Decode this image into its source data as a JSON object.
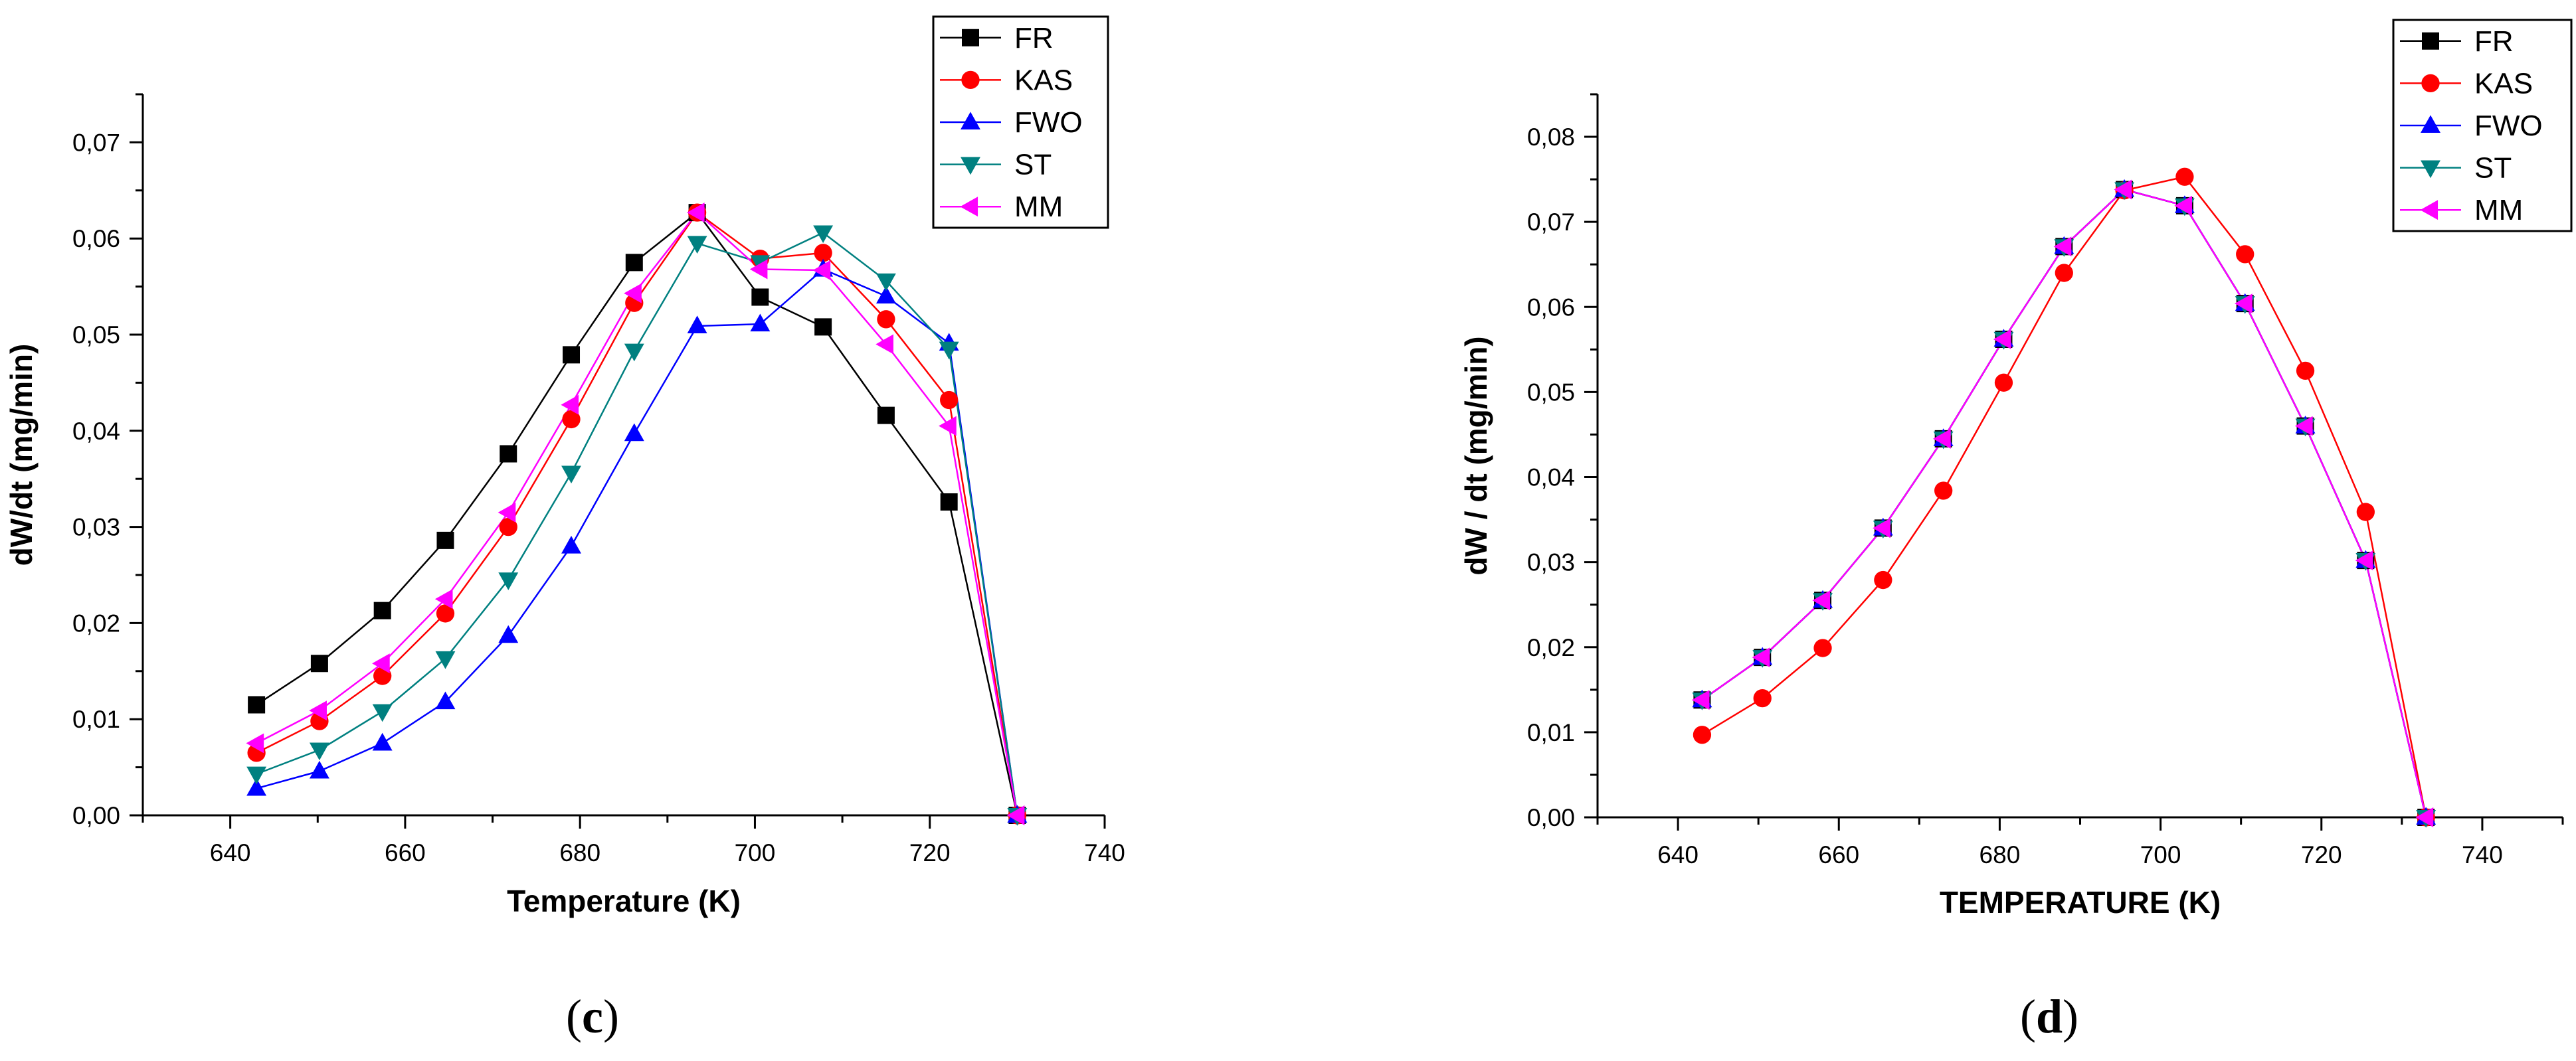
{
  "colors": {
    "FR": "#000000",
    "KAS": "#ff0000",
    "FWO": "#0000ff",
    "ST": "#008080",
    "MM": "#ff00ff"
  },
  "chart_data": [
    {
      "type": "line",
      "panel_label": "c",
      "xlabel": "Temperature (K)",
      "ylabel": "dW/dt (mg/min)",
      "xlim": [
        630,
        740
      ],
      "ylim": [
        0,
        0.075
      ],
      "xticks": [
        640,
        660,
        680,
        700,
        720,
        740
      ],
      "xtick_labels": [
        "640",
        "660",
        "680",
        "700",
        "720",
        "740"
      ],
      "yticks": [
        0,
        0.01,
        0.02,
        0.03,
        0.04,
        0.05,
        0.06,
        0.07
      ],
      "ytick_labels": [
        "0,00",
        "0,01",
        "0,02",
        "0,03",
        "0,04",
        "0,05",
        "0,06",
        "0,07"
      ],
      "legend_position": "top-right",
      "series": [
        {
          "name": "FR",
          "marker": "square",
          "x": [
            643,
            650.2,
            657.4,
            664.6,
            671.8,
            679,
            686.2,
            693.4,
            700.6,
            707.8,
            715,
            722.2,
            730
          ],
          "y": [
            0.0115,
            0.0158,
            0.0213,
            0.0286,
            0.0376,
            0.0479,
            0.0575,
            0.0627,
            0.0539,
            0.0508,
            0.0416,
            0.0326,
            0
          ]
        },
        {
          "name": "KAS",
          "marker": "circle",
          "x": [
            643,
            650.2,
            657.4,
            664.6,
            671.8,
            679,
            686.2,
            693.4,
            700.6,
            707.8,
            715,
            722.2,
            730
          ],
          "y": [
            0.0065,
            0.0098,
            0.0145,
            0.021,
            0.03,
            0.0412,
            0.0533,
            0.0627,
            0.0579,
            0.0585,
            0.0516,
            0.0432,
            0
          ]
        },
        {
          "name": "FWO",
          "marker": "triangle-up",
          "x": [
            643,
            650.2,
            657.4,
            664.6,
            671.8,
            679,
            686.2,
            693.4,
            700.6,
            707.8,
            715,
            722.2,
            730
          ],
          "y": [
            0.0028,
            0.0046,
            0.0075,
            0.0118,
            0.0187,
            0.028,
            0.0397,
            0.0509,
            0.0511,
            0.0568,
            0.054,
            0.0491,
            0
          ]
        },
        {
          "name": "ST",
          "marker": "triangle-down",
          "x": [
            643,
            650.2,
            657.4,
            664.6,
            671.8,
            679,
            686.2,
            693.4,
            700.6,
            707.8,
            715,
            722.2,
            730
          ],
          "y": [
            0.0043,
            0.0068,
            0.0108,
            0.0163,
            0.0245,
            0.0356,
            0.0483,
            0.0595,
            0.0575,
            0.0606,
            0.0556,
            0.0485,
            0
          ]
        },
        {
          "name": "MM",
          "marker": "triangle-left",
          "x": [
            643,
            650.2,
            657.4,
            664.6,
            671.8,
            679,
            686.2,
            693.4,
            700.6,
            707.8,
            715,
            722.2,
            730
          ],
          "y": [
            0.0075,
            0.0109,
            0.0158,
            0.0225,
            0.0315,
            0.0427,
            0.0543,
            0.0627,
            0.0568,
            0.0567,
            0.049,
            0.0405,
            0
          ]
        }
      ]
    },
    {
      "type": "line",
      "panel_label": "d",
      "xlabel": "TEMPERATURE (K)",
      "ylabel": "dW / dt  (mg/min)",
      "xlim": [
        630,
        750
      ],
      "ylim": [
        0,
        0.085
      ],
      "xticks": [
        640,
        660,
        680,
        700,
        720,
        740
      ],
      "xtick_labels": [
        "640",
        "660",
        "680",
        "700",
        "720",
        "740"
      ],
      "yticks": [
        0,
        0.01,
        0.02,
        0.03,
        0.04,
        0.05,
        0.06,
        0.07,
        0.08
      ],
      "ytick_labels": [
        "0,00",
        "0,01",
        "0,02",
        "0,03",
        "0,04",
        "0,05",
        "0,06",
        "0,07",
        "0,08"
      ],
      "legend_position": "top-right",
      "series": [
        {
          "name": "FR",
          "marker": "square",
          "x": [
            643,
            650.5,
            658,
            665.5,
            673,
            680.5,
            688,
            695.5,
            703,
            710.5,
            718,
            725.5,
            733
          ],
          "y": [
            0.0138,
            0.0188,
            0.0255,
            0.034,
            0.0445,
            0.0562,
            0.0671,
            0.0738,
            0.0719,
            0.0604,
            0.046,
            0.0302,
            0
          ]
        },
        {
          "name": "KAS",
          "marker": "circle",
          "x": [
            643,
            650.5,
            658,
            665.5,
            673,
            680.5,
            688,
            695.5,
            703,
            710.5,
            718,
            725.5,
            733
          ],
          "y": [
            0.0097,
            0.014,
            0.0199,
            0.0279,
            0.0384,
            0.0511,
            0.064,
            0.0737,
            0.0753,
            0.0662,
            0.0525,
            0.0359,
            0
          ]
        },
        {
          "name": "FWO",
          "marker": "triangle-up",
          "x": [
            643,
            650.5,
            658,
            665.5,
            673,
            680.5,
            688,
            695.5,
            703,
            710.5,
            718,
            725.5,
            733
          ],
          "y": [
            0.0138,
            0.0188,
            0.0255,
            0.034,
            0.0445,
            0.0562,
            0.0671,
            0.0738,
            0.0719,
            0.0604,
            0.046,
            0.0302,
            0
          ]
        },
        {
          "name": "ST",
          "marker": "triangle-down",
          "x": [
            643,
            650.5,
            658,
            665.5,
            673,
            680.5,
            688,
            695.5,
            703,
            710.5,
            718,
            725.5,
            733
          ],
          "y": [
            0.0138,
            0.0188,
            0.0255,
            0.034,
            0.0445,
            0.0562,
            0.0671,
            0.0738,
            0.0719,
            0.0604,
            0.046,
            0.0302,
            0
          ]
        },
        {
          "name": "MM",
          "marker": "triangle-left",
          "x": [
            643,
            650.5,
            658,
            665.5,
            673,
            680.5,
            688,
            695.5,
            703,
            710.5,
            718,
            725.5,
            733
          ],
          "y": [
            0.0138,
            0.0188,
            0.0255,
            0.034,
            0.0445,
            0.0562,
            0.0671,
            0.0738,
            0.0719,
            0.0604,
            0.046,
            0.0302,
            0
          ]
        }
      ]
    }
  ]
}
